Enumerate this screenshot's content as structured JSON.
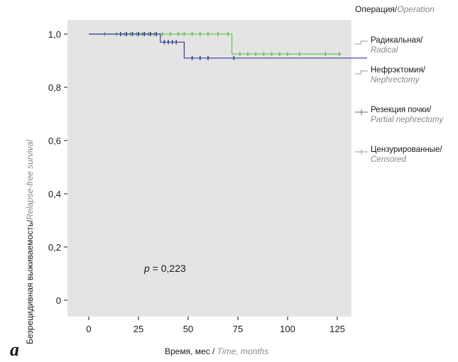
{
  "chart_data": {
    "type": "line",
    "subtype": "kaplan-meier",
    "panel_label": "a",
    "xlabel_ru": "Время, мес /",
    "xlabel_en": "Time, months",
    "ylabel_ru": "Безрецидивная выживаемость/",
    "ylabel_en": "Relapse-free survival",
    "xlim": [
      0,
      140
    ],
    "ylim": [
      0,
      1.0
    ],
    "x_ticks": [
      "0",
      "25",
      "50",
      "75",
      "100",
      "125"
    ],
    "y_ticks": [
      "0",
      "0,2",
      "0,4",
      "0,6",
      "0,8",
      "1,0"
    ],
    "x_tick_values": [
      0,
      25,
      50,
      75,
      100,
      125
    ],
    "y_tick_values": [
      0,
      0.2,
      0.4,
      0.6,
      0.8,
      1.0
    ],
    "annotation": {
      "p": "p",
      "rest": " = 0,223"
    },
    "legend": {
      "title_ru": "Операция/",
      "title_en": "Operation",
      "items": [
        {
          "ru": "Радикальная/",
          "en": "Radical"
        },
        {
          "ru": "Нефрэктомия/",
          "en": "Nephrectomy"
        },
        {
          "ru": "Резекция почки/",
          "en": "Partial nephrectomy"
        },
        {
          "ru": "Цензурированные/",
          "en": "Censored"
        }
      ]
    },
    "series": [
      {
        "name": "Нефрэктомия/Nephrectomy",
        "color": "#6abf5a",
        "steps": [
          [
            0,
            1.0
          ],
          [
            72,
            1.0
          ],
          [
            72,
            0.925
          ],
          [
            127,
            0.925
          ]
        ],
        "censored": [
          [
            8,
            1.0
          ],
          [
            14,
            1.0
          ],
          [
            18,
            1.0
          ],
          [
            21,
            1.0
          ],
          [
            24,
            1.0
          ],
          [
            27,
            1.0
          ],
          [
            30,
            1.0
          ],
          [
            33,
            1.0
          ],
          [
            37,
            1.0
          ],
          [
            41,
            1.0
          ],
          [
            45,
            1.0
          ],
          [
            48,
            1.0
          ],
          [
            52,
            1.0
          ],
          [
            56,
            1.0
          ],
          [
            60,
            1.0
          ],
          [
            65,
            1.0
          ],
          [
            70,
            1.0
          ],
          [
            76,
            0.925
          ],
          [
            80,
            0.925
          ],
          [
            84,
            0.925
          ],
          [
            88,
            0.925
          ],
          [
            92,
            0.925
          ],
          [
            96,
            0.925
          ],
          [
            100,
            0.925
          ],
          [
            106,
            0.925
          ],
          [
            119,
            0.925
          ],
          [
            126,
            0.925
          ]
        ]
      },
      {
        "name": "Резекция почки/Partial nephrectomy",
        "color": "#3a3a9e",
        "steps": [
          [
            0,
            1.0
          ],
          [
            36,
            1.0
          ],
          [
            36,
            0.97
          ],
          [
            48,
            0.97
          ],
          [
            48,
            0.91
          ],
          [
            140,
            0.91
          ]
        ],
        "censored": [
          [
            16,
            1.0
          ],
          [
            19,
            1.0
          ],
          [
            22,
            1.0
          ],
          [
            25,
            1.0
          ],
          [
            28,
            1.0
          ],
          [
            31,
            1.0
          ],
          [
            34,
            1.0
          ],
          [
            38,
            0.97
          ],
          [
            40,
            0.97
          ],
          [
            42,
            0.97
          ],
          [
            44,
            0.97
          ],
          [
            52,
            0.91
          ],
          [
            56,
            0.91
          ],
          [
            60,
            0.91
          ],
          [
            73,
            0.91
          ]
        ]
      }
    ],
    "background": "#e4e4e4",
    "grid": false
  }
}
